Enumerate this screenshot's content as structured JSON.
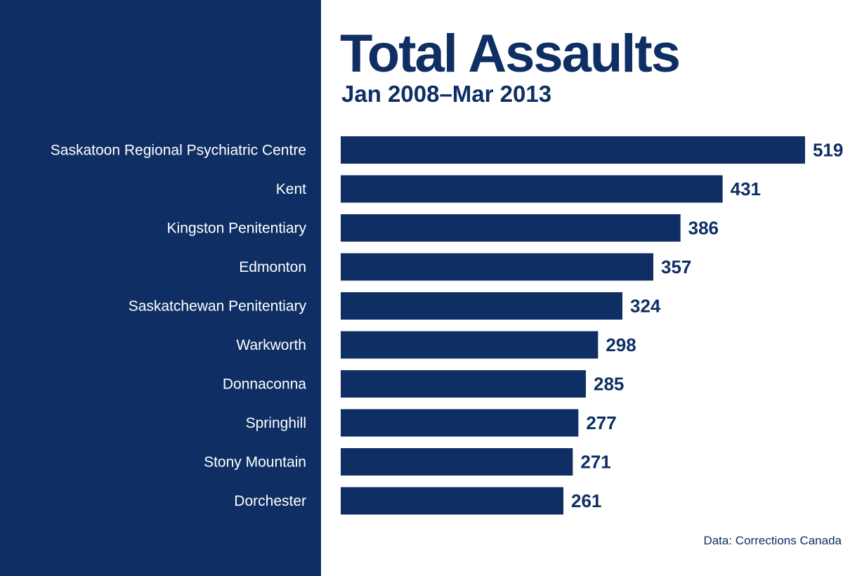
{
  "chart_data": {
    "type": "bar",
    "orientation": "horizontal",
    "title": "Total Assaults",
    "subtitle": "Jan 2008–Mar 2013",
    "source": "Data: Corrections Canada",
    "categories": [
      "Saskatoon Regional Psychiatric Centre",
      "Kent",
      "Kingston Penitentiary",
      "Edmonton",
      "Saskatchewan Penitentiary",
      "Warkworth",
      "Donnaconna",
      "Springhill",
      "Stony Mountain",
      "Dorchester"
    ],
    "values": [
      519,
      431,
      386,
      357,
      324,
      298,
      285,
      277,
      271,
      261
    ],
    "grid": false,
    "legend": "none",
    "colors": {
      "bar": "#0f2f64",
      "label_panel": "#0f2f64",
      "category_text": "#ffffff",
      "value_text": "#0f2f64"
    }
  }
}
